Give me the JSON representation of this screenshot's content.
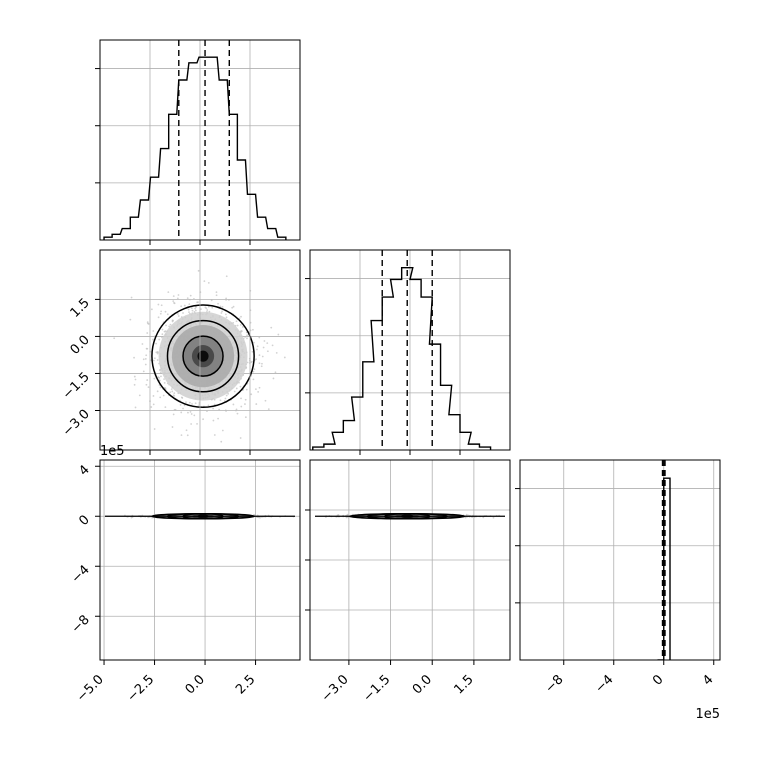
{
  "chart_data": {
    "type": "corner",
    "panels": [
      {
        "id": "hist_p0",
        "type": "histogram",
        "quantiles": [
          -1.3,
          0.0,
          1.2
        ],
        "x_ticks": [],
        "y_ticks": [],
        "xlim": [
          -5.2,
          4.7
        ],
        "bins": [
          [
            -4.8,
            0.05
          ],
          [
            -4.4,
            0.1
          ],
          [
            -3.9,
            0.2
          ],
          [
            -3.5,
            0.4
          ],
          [
            -3.0,
            0.7
          ],
          [
            -2.5,
            1.1
          ],
          [
            -2.0,
            1.6
          ],
          [
            -1.6,
            2.2
          ],
          [
            -1.1,
            2.8
          ],
          [
            -0.6,
            3.1
          ],
          [
            -0.1,
            3.2
          ],
          [
            0.4,
            3.2
          ],
          [
            0.9,
            2.8
          ],
          [
            1.4,
            2.2
          ],
          [
            1.8,
            1.4
          ],
          [
            2.3,
            0.8
          ],
          [
            2.8,
            0.4
          ],
          [
            3.3,
            0.2
          ],
          [
            3.8,
            0.05
          ]
        ],
        "ylim": [
          0,
          3.5
        ]
      },
      {
        "id": "scatter_p0_p1",
        "type": "2d-histogram",
        "xlim": [
          -5.2,
          4.7
        ],
        "ylim": [
          -4.6,
          3.5
        ],
        "x_ticks": [],
        "y_ticks": [
          -3.0,
          -1.5,
          0.0,
          1.5
        ],
        "y_tick_labels": [
          "−3.0",
          "−1.5",
          "0.0",
          "1.5"
        ],
        "center": [
          -0.1,
          -0.8
        ],
        "spread": [
          1.1,
          0.9
        ]
      },
      {
        "id": "hist_p1",
        "type": "histogram",
        "quantiles": [
          -1.8,
          -0.9,
          0.0
        ],
        "x_ticks": [],
        "y_ticks": [],
        "xlim": [
          -4.4,
          2.8
        ],
        "bins": [
          [
            -4.1,
            0.05
          ],
          [
            -3.7,
            0.1
          ],
          [
            -3.4,
            0.3
          ],
          [
            -3.0,
            0.5
          ],
          [
            -2.7,
            0.9
          ],
          [
            -2.3,
            1.5
          ],
          [
            -2.0,
            2.2
          ],
          [
            -1.6,
            2.6
          ],
          [
            -1.3,
            2.9
          ],
          [
            -0.9,
            3.1
          ],
          [
            -0.6,
            2.9
          ],
          [
            -0.2,
            2.6
          ],
          [
            0.1,
            1.8
          ],
          [
            0.5,
            1.1
          ],
          [
            0.8,
            0.6
          ],
          [
            1.2,
            0.3
          ],
          [
            1.5,
            0.1
          ],
          [
            1.9,
            0.05
          ]
        ],
        "ylim": [
          0,
          3.4
        ]
      },
      {
        "id": "scatter_p0_p2",
        "type": "2d-histogram",
        "xlim": [
          -5.2,
          4.7
        ],
        "ylim": [
          -11.5,
          4.5
        ],
        "x_ticks": [
          -5.0,
          -2.5,
          0.0,
          2.5
        ],
        "x_tick_labels": [
          "−5.0",
          "−2.5",
          "0.0",
          "2.5"
        ],
        "y_ticks": [
          -8,
          -4,
          0,
          4
        ],
        "y_tick_labels": [
          "−8",
          "−4",
          "0",
          "4"
        ],
        "y_offset_label": "1e5",
        "center": [
          -0.1,
          0.0
        ],
        "spread": [
          1.1,
          0.6
        ]
      },
      {
        "id": "scatter_p1_p2",
        "type": "2d-histogram",
        "xlim": [
          -4.4,
          2.8
        ],
        "ylim": [
          -11.5,
          4.5
        ],
        "x_ticks": [
          -3.0,
          -1.5,
          0.0,
          1.5
        ],
        "x_tick_labels": [
          "−3.0",
          "−1.5",
          "0.0",
          "1.5"
        ],
        "y_ticks": [],
        "center": [
          -0.9,
          0.0
        ],
        "spread": [
          0.9,
          0.6
        ]
      },
      {
        "id": "hist_p2",
        "type": "histogram",
        "quantiles": [
          -0.1,
          0.0,
          0.1
        ],
        "xlim": [
          -11.5,
          4.5
        ],
        "x_ticks": [
          -8,
          -4,
          0,
          4
        ],
        "x_tick_labels": [
          "−8",
          "−4",
          "0",
          "4"
        ],
        "x_offset_label": "1e5",
        "y_ticks": [],
        "bins": [
          [
            -0.25,
            0.0
          ],
          [
            0.25,
            1.0
          ]
        ],
        "ylim": [
          0,
          1.1
        ]
      }
    ],
    "grid": true,
    "colors": {
      "line": "#000000",
      "grid": "#b0b0b0",
      "scatter": "#bfbfbf"
    }
  }
}
